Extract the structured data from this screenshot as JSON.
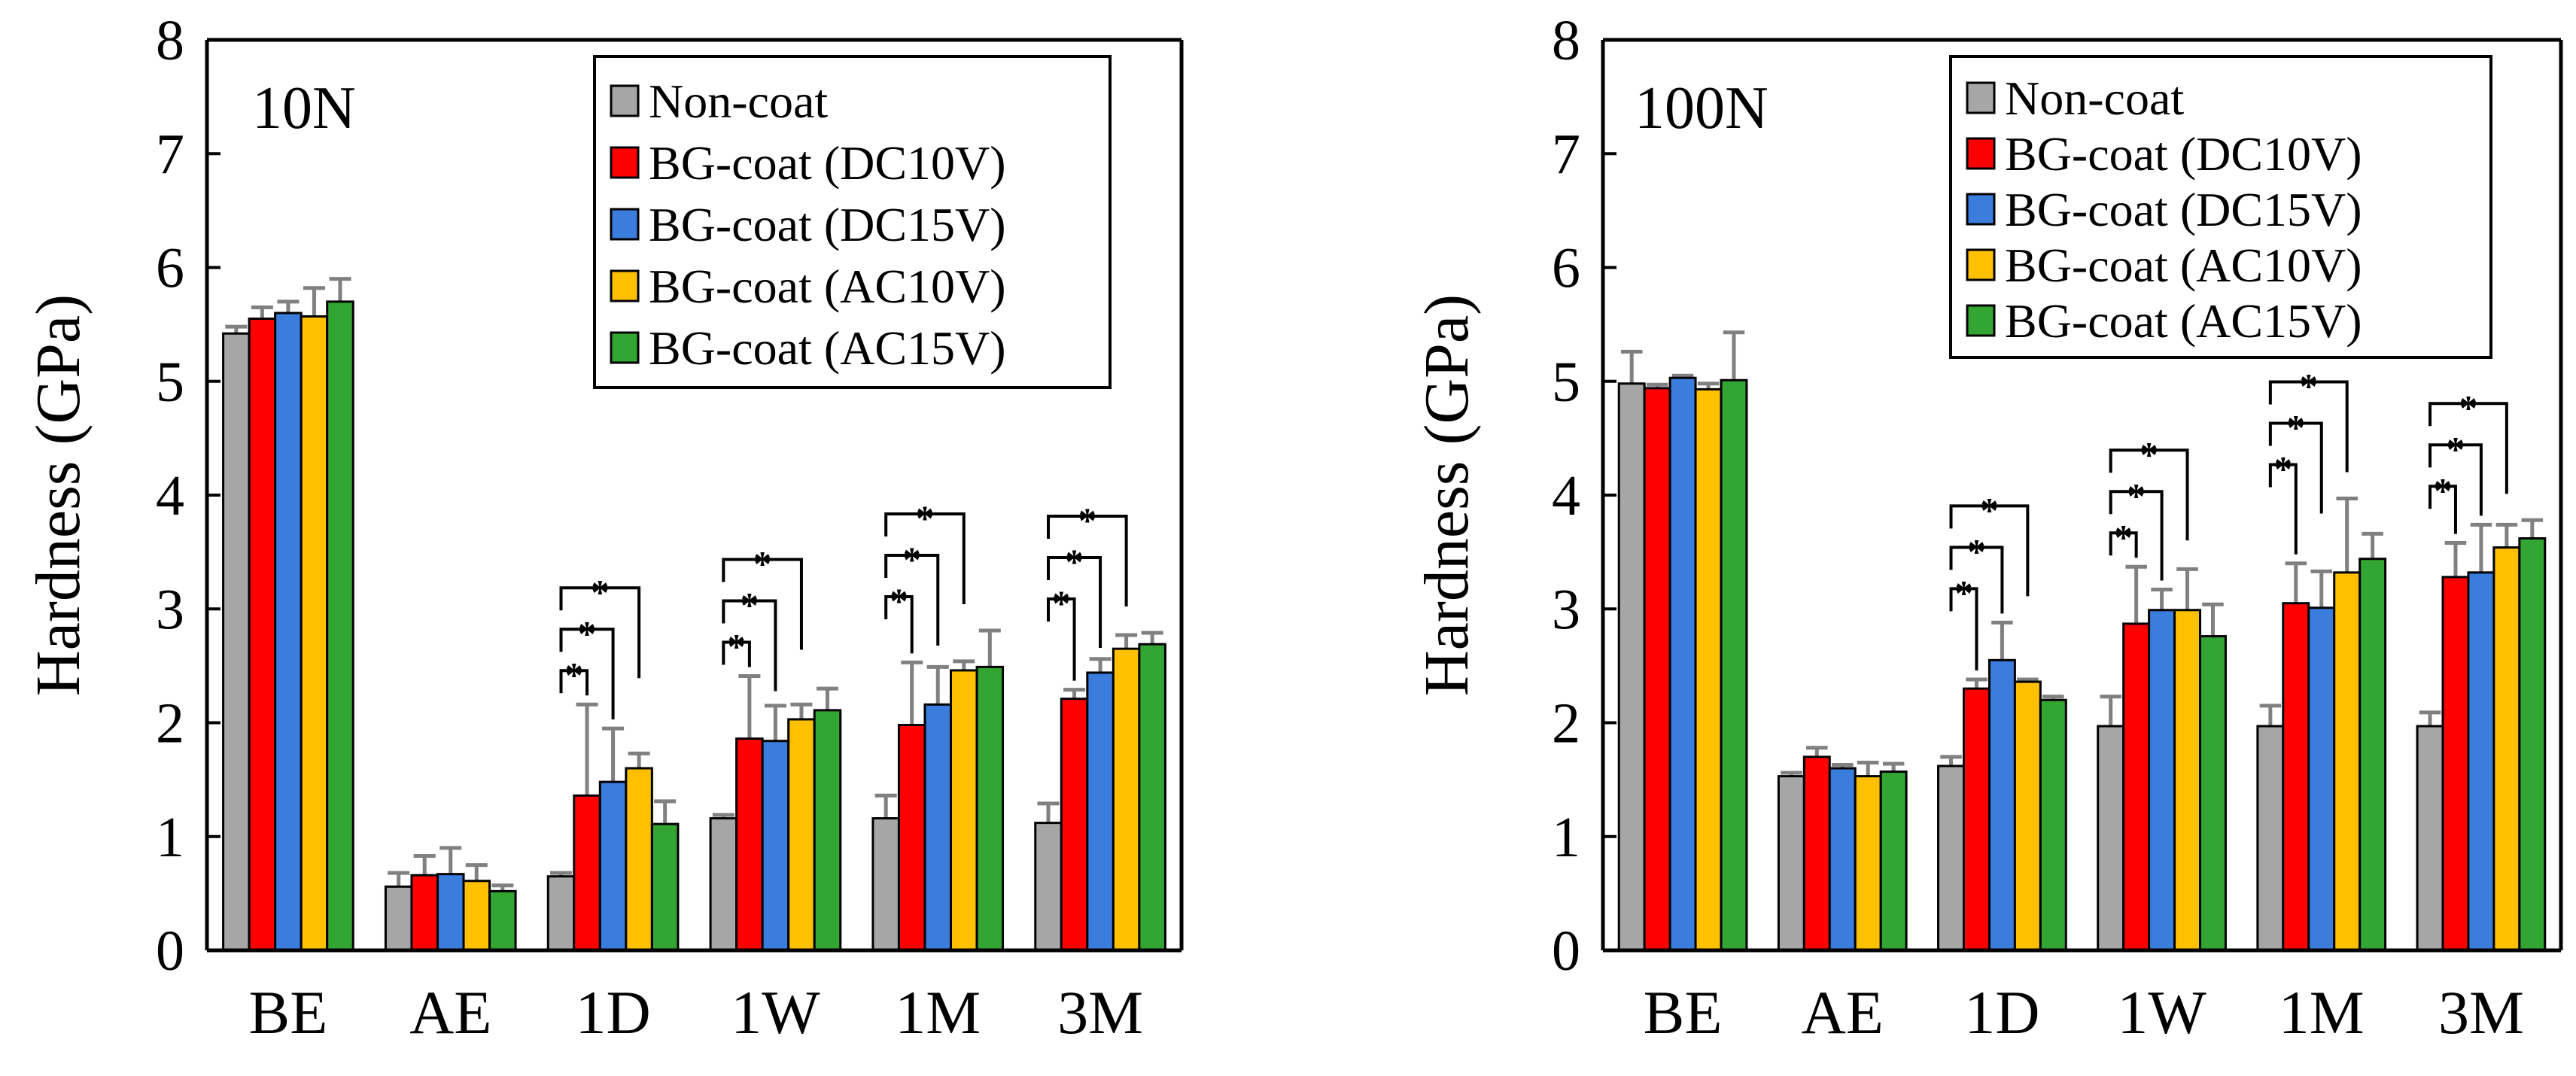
{
  "chart_data": [
    {
      "type": "bar",
      "title": "10N",
      "ylabel": "Hardness (GPa)",
      "xlabel": "",
      "ylim": [
        0,
        8
      ],
      "yticks": [
        "0",
        "1",
        "2",
        "3",
        "4",
        "5",
        "6",
        "7",
        "8"
      ],
      "categories": [
        "BE",
        "AE",
        "1D",
        "1W",
        "1M",
        "3M"
      ],
      "series": [
        {
          "name": "Non-coat",
          "color": "#a6a6a6",
          "values": [
            5.42,
            0.56,
            0.65,
            1.16,
            1.16,
            1.12
          ],
          "errors": [
            0.06,
            0.12,
            0.03,
            0.03,
            0.2,
            0.17
          ]
        },
        {
          "name": "BG-coat (DC10V)",
          "color": "#ff0000",
          "values": [
            5.55,
            0.66,
            1.36,
            1.86,
            1.98,
            2.21
          ],
          "errors": [
            0.1,
            0.17,
            0.8,
            0.55,
            0.55,
            0.08
          ]
        },
        {
          "name": "BG-coat (DC15V)",
          "color": "#3b7ddd",
          "values": [
            5.6,
            0.67,
            1.48,
            1.84,
            2.16,
            2.44
          ],
          "errors": [
            0.1,
            0.23,
            0.47,
            0.31,
            0.33,
            0.12
          ]
        },
        {
          "name": "BG-coat (AC10V)",
          "color": "#ffc000",
          "values": [
            5.57,
            0.61,
            1.6,
            2.03,
            2.46,
            2.65
          ],
          "errors": [
            0.25,
            0.14,
            0.13,
            0.13,
            0.08,
            0.12
          ]
        },
        {
          "name": "BG-coat (AC15V)",
          "color": "#33a532",
          "values": [
            5.7,
            0.52,
            1.11,
            2.11,
            2.49,
            2.69
          ],
          "errors": [
            0.2,
            0.05,
            0.2,
            0.19,
            0.32,
            0.1
          ]
        }
      ],
      "significance": [
        {
          "category": "1D",
          "levels": [
            "*",
            "*",
            "*"
          ]
        },
        {
          "category": "1W",
          "levels": [
            "*",
            "*",
            "*"
          ]
        },
        {
          "category": "1M",
          "levels": [
            "*",
            "*",
            "*"
          ]
        },
        {
          "category": "3M",
          "levels": [
            "*",
            "*",
            "*"
          ]
        }
      ],
      "legend_position": "top-right"
    },
    {
      "type": "bar",
      "title": "100N",
      "ylabel": "Hardness (GPa)",
      "xlabel": "",
      "ylim": [
        0,
        8
      ],
      "yticks": [
        "0",
        "1",
        "2",
        "3",
        "4",
        "5",
        "6",
        "7",
        "8"
      ],
      "categories": [
        "BE",
        "AE",
        "1D",
        "1W",
        "1M",
        "3M"
      ],
      "series": [
        {
          "name": "Non-coat",
          "color": "#a6a6a6",
          "values": [
            4.98,
            1.53,
            1.62,
            1.97,
            1.97,
            1.97
          ],
          "errors": [
            0.28,
            0.03,
            0.08,
            0.26,
            0.18,
            0.12
          ]
        },
        {
          "name": "BG-coat (DC10V)",
          "color": "#ff0000",
          "values": [
            4.94,
            1.7,
            2.3,
            2.87,
            3.05,
            3.28
          ],
          "errors": [
            0.03,
            0.08,
            0.08,
            0.5,
            0.35,
            0.3
          ]
        },
        {
          "name": "BG-coat (DC15V)",
          "color": "#3b7ddd",
          "values": [
            5.03,
            1.6,
            2.55,
            2.99,
            3.01,
            3.32
          ],
          "errors": [
            0.02,
            0.03,
            0.33,
            0.18,
            0.32,
            0.42
          ]
        },
        {
          "name": "BG-coat (AC10V)",
          "color": "#ffc000",
          "values": [
            4.93,
            1.53,
            2.36,
            2.99,
            3.32,
            3.54
          ],
          "errors": [
            0.05,
            0.12,
            0.02,
            0.36,
            0.65,
            0.2
          ]
        },
        {
          "name": "BG-coat (AC15V)",
          "color": "#33a532",
          "values": [
            5.01,
            1.57,
            2.2,
            2.76,
            3.44,
            3.62
          ],
          "errors": [
            0.42,
            0.07,
            0.03,
            0.28,
            0.22,
            0.16
          ]
        }
      ],
      "significance": [
        {
          "category": "1D",
          "levels": [
            "*",
            "*",
            "*"
          ]
        },
        {
          "category": "1W",
          "levels": [
            "*",
            "*",
            "*"
          ]
        },
        {
          "category": "1M",
          "levels": [
            "*",
            "*",
            "*"
          ]
        },
        {
          "category": "3M",
          "levels": [
            "*",
            "*",
            "*"
          ]
        }
      ],
      "legend_position": "top-right"
    }
  ]
}
